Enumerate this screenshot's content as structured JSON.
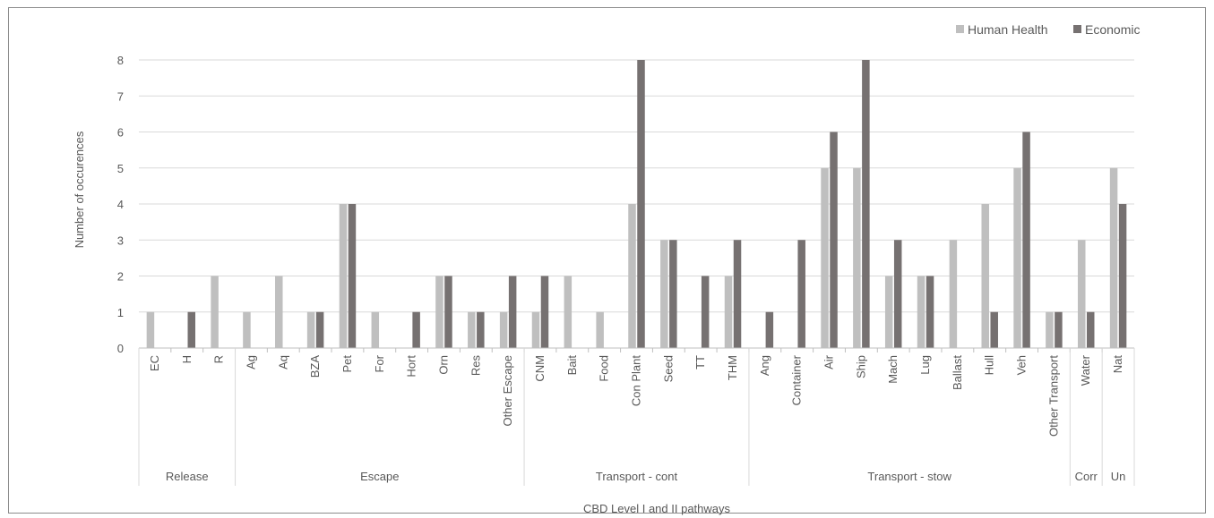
{
  "chart_data": {
    "type": "bar",
    "title": "",
    "xlabel": "CBD Level I and II pathways",
    "ylabel": "Number of occurences",
    "ylim": [
      0,
      8
    ],
    "yticks": [
      0,
      1,
      2,
      3,
      4,
      5,
      6,
      7,
      8
    ],
    "grid": true,
    "legend_position": "top-right",
    "categories": [
      "EC",
      "H",
      "R",
      "Ag",
      "Aq",
      "BZA",
      "Pet",
      "For",
      "Hort",
      "Orn",
      "Res",
      "Other Escape",
      "CNM",
      "Bait",
      "Food",
      "Con Plant",
      "Seed",
      "TT",
      "THM",
      "Ang",
      "Container",
      "Air",
      "Ship",
      "Mach",
      "Lug",
      "Ballast",
      "Hull",
      "Veh",
      "Other Transport",
      "Water",
      "Nat"
    ],
    "groups": [
      {
        "label": "Release",
        "count": 3
      },
      {
        "label": "Escape",
        "count": 9
      },
      {
        "label": "Transport - cont",
        "count": 7
      },
      {
        "label": "Transport - stow",
        "count": 10
      },
      {
        "label": "Corr",
        "count": 1
      },
      {
        "label": "Un",
        "count": 1
      }
    ],
    "series": [
      {
        "name": "Human Health",
        "color": "#bfbfbf",
        "values": [
          1,
          0,
          2,
          1,
          2,
          1,
          4,
          1,
          0,
          2,
          1,
          1,
          1,
          2,
          1,
          4,
          3,
          0,
          2,
          0,
          0,
          5,
          5,
          2,
          2,
          3,
          4,
          5,
          1,
          3,
          5
        ]
      },
      {
        "name": "Economic",
        "color": "#767171",
        "values": [
          0,
          1,
          0,
          0,
          0,
          1,
          4,
          0,
          1,
          2,
          1,
          2,
          2,
          0,
          0,
          8,
          3,
          2,
          3,
          1,
          3,
          6,
          8,
          3,
          2,
          0,
          1,
          6,
          1,
          1,
          4
        ]
      }
    ]
  }
}
